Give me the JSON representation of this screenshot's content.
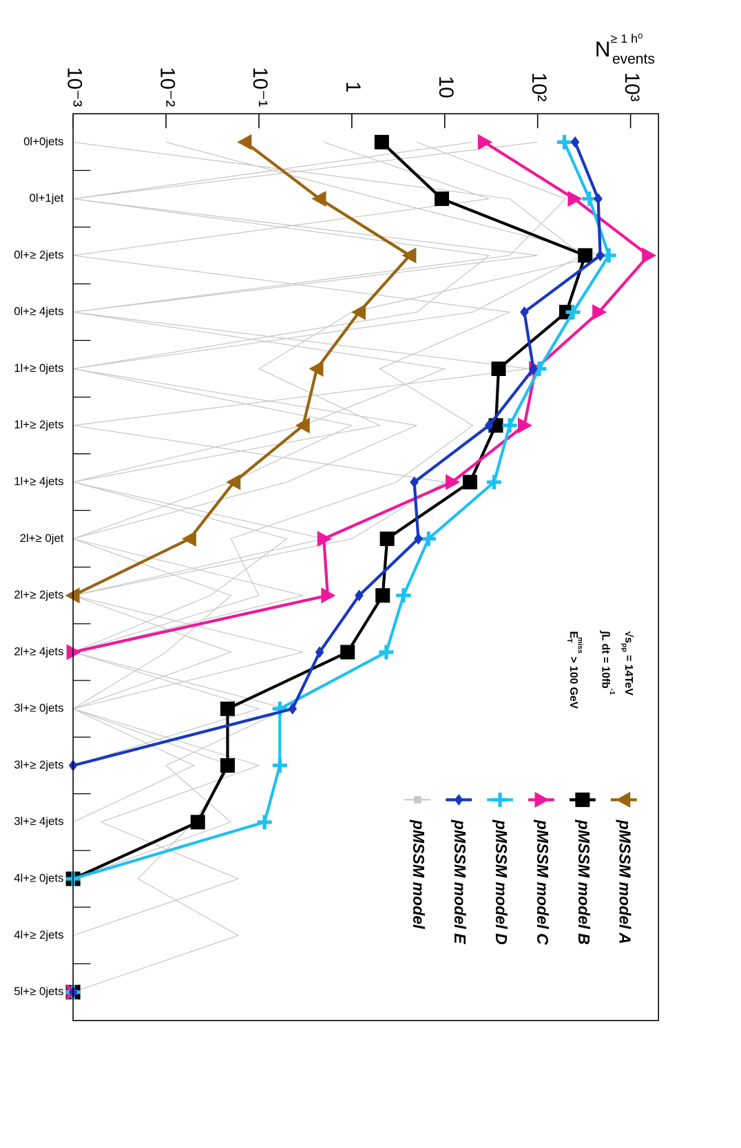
{
  "chart_data": {
    "type": "line",
    "axis_label": {
      "main": "N",
      "sup": "≥ 1 h⁰",
      "sub": "events"
    },
    "annotations": [
      {
        "main": "√s",
        "sub": "pp",
        "rest": " = 14TeV"
      },
      {
        "main": "∫L dt = 10fb",
        "sup": "-1"
      },
      {
        "main": "E",
        "sub": "T",
        "sup": "miss",
        "rest": " > 100 GeV"
      }
    ],
    "categories": [
      "0l+0jets",
      "0l+1jet",
      "0l+≥ 2jets",
      "0l+≥ 4jets",
      "1l+≥ 0jets",
      "1l+≥ 2jets",
      "1l+≥ 4jets",
      "2l+≥ 0jet",
      "2l+≥ 2jets",
      "2l+≥ 4jets",
      "3l+≥ 0jets",
      "3l+≥ 2jets",
      "3l+≥ 4jets",
      "4l+≥ 0jets",
      "4l+≥ 2jets",
      "5l+≥ 0jets"
    ],
    "log_scale": true,
    "xlim": [
      0.001,
      2000
    ],
    "xticks": [
      {
        "value": 0.001,
        "label": "10⁻³"
      },
      {
        "value": 0.01,
        "label": "10⁻²"
      },
      {
        "value": 0.1,
        "label": "10⁻¹"
      },
      1,
      10,
      {
        "value": 100,
        "label": "10²"
      },
      {
        "value": 1000,
        "label": "10³"
      }
    ],
    "series": [
      {
        "name": "pMSSM model A",
        "color": "#9a6410",
        "marker": "triangle-left",
        "values": [
          0.071,
          0.45,
          4.2,
          1.2,
          0.42,
          0.3,
          0.054,
          0.018,
          0.001,
          null,
          null,
          null,
          null,
          null,
          null,
          0.001
        ]
      },
      {
        "name": "pMSSM model B",
        "color": "#000000",
        "marker": "square",
        "values": [
          2.1,
          9.3,
          325,
          204,
          38,
          35.5,
          18.7,
          2.4,
          2.15,
          0.9,
          0.046,
          0.046,
          0.022,
          0.001,
          null,
          0.001
        ]
      },
      {
        "name": "pMSSM model C",
        "color": "#f0189a",
        "marker": "triangle-right",
        "values": [
          26.7,
          248,
          1560,
          456,
          95,
          72,
          12,
          0.5,
          0.55,
          0.001,
          null,
          null,
          null,
          null,
          null,
          0.001
        ]
      },
      {
        "name": "pMSSM model D",
        "color": "#1ec0f0",
        "marker": "cross",
        "values": [
          194,
          361,
          585,
          240,
          104,
          50,
          34,
          6.7,
          3.6,
          2.35,
          0.168,
          0.168,
          0.115,
          0.001,
          null,
          0.001
        ]
      },
      {
        "name": "pMSSM model E",
        "color": "#1838c0",
        "marker": "diamond",
        "values": [
          253,
          448,
          472,
          72,
          90,
          30,
          4.7,
          5.2,
          1.2,
          0.45,
          0.23,
          0.001,
          null,
          null,
          null,
          0.001
        ]
      }
    ],
    "background_models": {
      "name": "pMSSM model",
      "color": "#c8c8c8",
      "lines": [
        [
          0.001,
          50,
          300,
          20,
          0.001,
          5,
          0.2,
          0.001,
          0.3,
          0.001,
          0.001,
          0.02,
          0.001,
          null,
          null,
          null
        ],
        [
          100,
          0.001,
          100,
          0.001,
          10,
          0.3,
          0.001,
          0.5,
          0.001,
          0.05,
          0.001,
          0.001,
          null,
          null,
          null,
          null
        ],
        [
          0.5,
          30,
          0.001,
          50,
          2,
          20,
          3,
          0.05,
          0.1,
          0.001,
          0.2,
          0.01,
          0.05,
          0.001,
          0.001,
          0.001
        ],
        [
          5,
          200,
          50,
          0.001,
          80,
          0.001,
          10,
          1,
          0.001,
          0.3,
          0.001,
          0.1,
          0.002,
          0.06,
          0.001,
          null
        ],
        [
          0.01,
          2,
          500,
          1,
          0.1,
          2,
          0.001,
          0.2,
          0.03,
          0.001,
          0.1,
          0.001,
          null,
          null,
          null,
          null
        ],
        [
          20,
          0.001,
          30,
          5,
          0.001,
          1,
          0.05,
          0.001,
          0.05,
          0.01,
          0.001,
          0.05,
          0.02,
          0.005,
          0.06,
          0.001
        ]
      ]
    }
  }
}
